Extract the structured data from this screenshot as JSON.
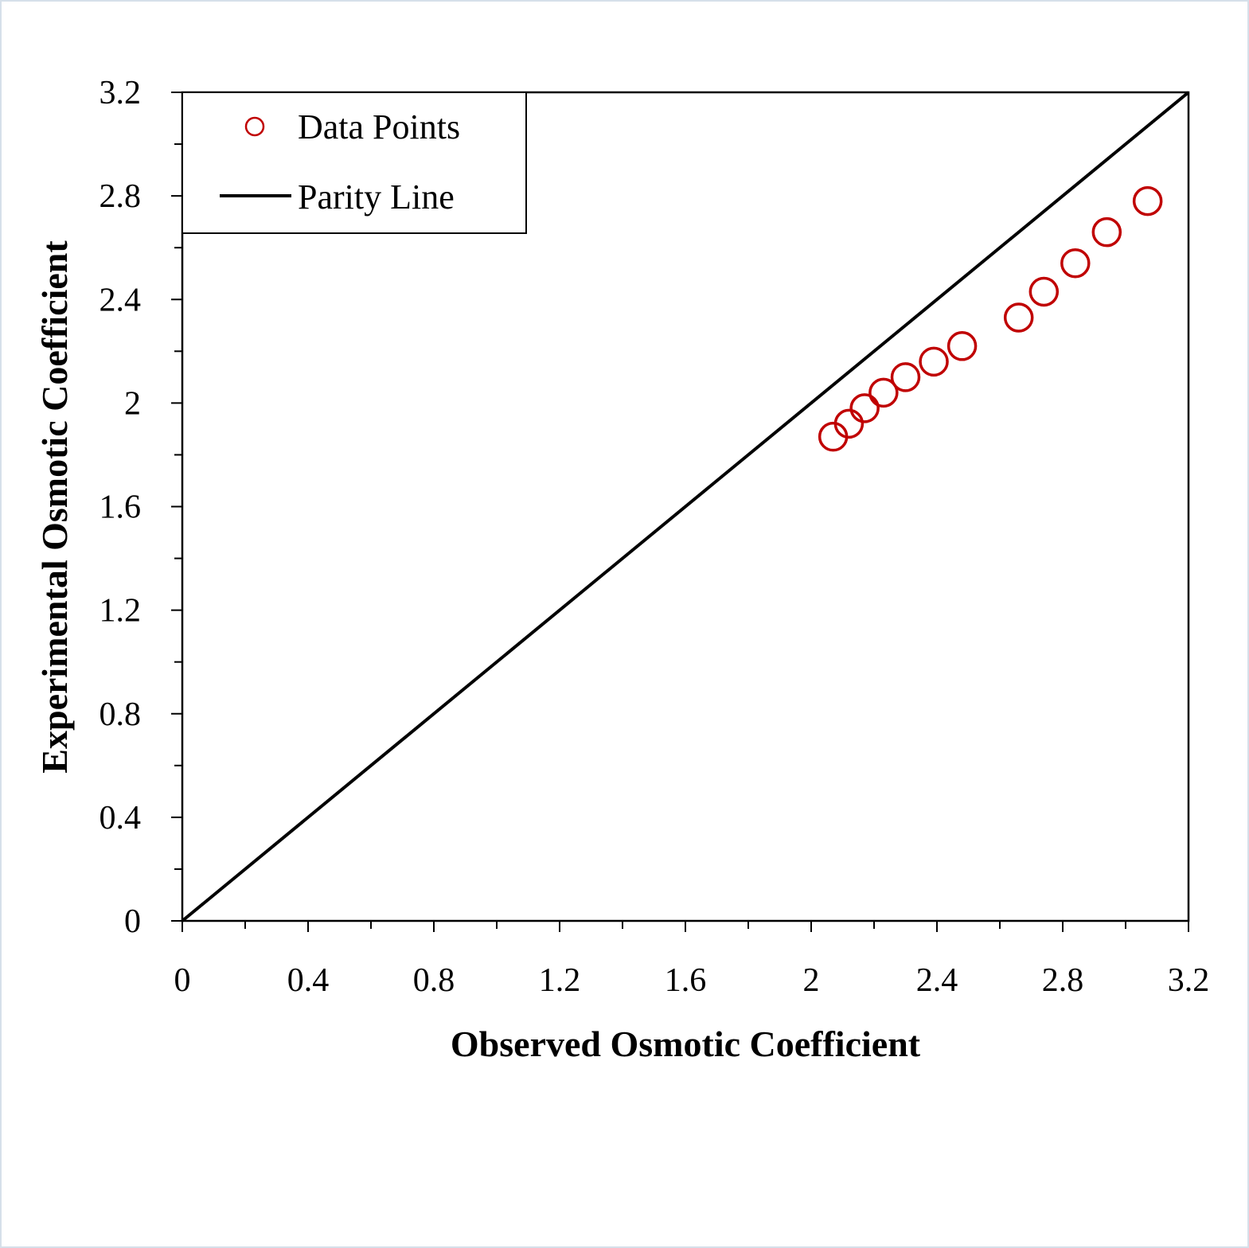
{
  "chart_data": {
    "type": "scatter",
    "xlabel": "Observed Osmotic Coefficient",
    "ylabel": "Experimental Osmotic Coefficient",
    "xlim": [
      0,
      3.2
    ],
    "ylim": [
      0,
      3.2
    ],
    "x_ticks": [
      "0",
      "0.4",
      "0.8",
      "1.2",
      "1.6",
      "2",
      "2.4",
      "2.8",
      "3.2"
    ],
    "y_ticks": [
      "0",
      "0.4",
      "0.8",
      "1.2",
      "1.6",
      "2",
      "2.4",
      "2.8",
      "3.2"
    ],
    "grid": false,
    "legend_position": "top-left",
    "series": [
      {
        "name": "Data Points",
        "marker": "open-circle",
        "color": "#c00000",
        "x": [
          2.07,
          2.12,
          2.17,
          2.23,
          2.3,
          2.39,
          2.48,
          2.66,
          2.74,
          2.84,
          2.94,
          3.07
        ],
        "y": [
          1.87,
          1.92,
          1.98,
          2.04,
          2.1,
          2.16,
          2.22,
          2.33,
          2.43,
          2.54,
          2.66,
          2.78
        ]
      },
      {
        "name": "Parity Line",
        "marker": "line",
        "color": "#000000",
        "x": [
          0,
          3.2
        ],
        "y": [
          0,
          3.2
        ]
      }
    ]
  }
}
